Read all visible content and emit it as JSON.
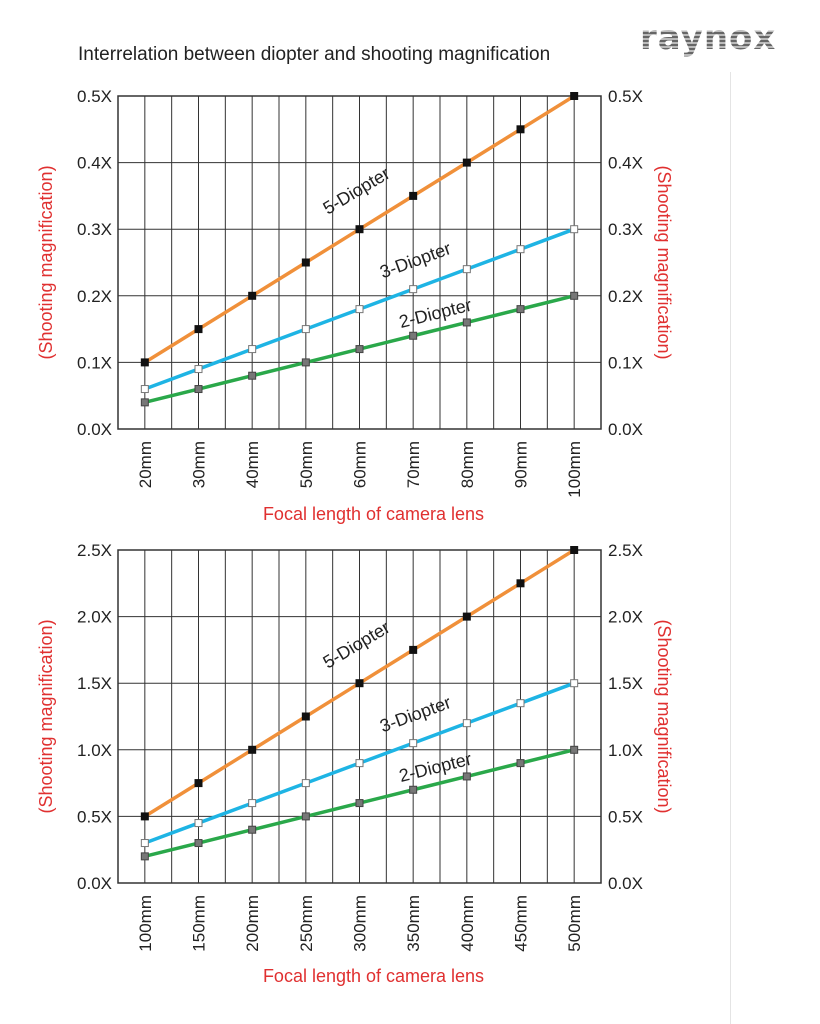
{
  "title": "Interrelation between diopter and shooting magnification",
  "logo": "raynox",
  "colors": {
    "5-Diopter": "#f0903a",
    "3-Diopter": "#1eb4e4",
    "2-Diopter": "#2aa84a",
    "axis_label": "#e03030"
  },
  "chart_data": [
    {
      "type": "line",
      "xlabel": "Focal length of camera lens",
      "ylabel": "(Shooting magnification)",
      "x": [
        20,
        30,
        40,
        50,
        60,
        70,
        80,
        90,
        100
      ],
      "xtick_labels": [
        "20mm",
        "30mm",
        "40mm",
        "50mm",
        "60mm",
        "70mm",
        "80mm",
        "90mm",
        "100mm"
      ],
      "xlim": [
        15,
        105
      ],
      "xgrid_step": 5,
      "ylim": [
        0,
        0.5
      ],
      "yticks": [
        0,
        0.1,
        0.2,
        0.3,
        0.4,
        0.5
      ],
      "ytick_labels": [
        "0.0X",
        "0.1X",
        "0.2X",
        "0.3X",
        "0.4X",
        "0.5X"
      ],
      "series": [
        {
          "name": "5-Diopter",
          "values": [
            0.1,
            0.15,
            0.2,
            0.25,
            0.3,
            0.35,
            0.4,
            0.45,
            0.5
          ]
        },
        {
          "name": "3-Diopter",
          "values": [
            0.06,
            0.09,
            0.12,
            0.15,
            0.18,
            0.21,
            0.24,
            0.27,
            0.3
          ]
        },
        {
          "name": "2-Diopter",
          "values": [
            0.04,
            0.06,
            0.08,
            0.1,
            0.12,
            0.14,
            0.16,
            0.18,
            0.2
          ]
        }
      ]
    },
    {
      "type": "line",
      "xlabel": "Focal length of camera lens",
      "ylabel": "(Shooting magnification)",
      "x": [
        100,
        150,
        200,
        250,
        300,
        350,
        400,
        450,
        500
      ],
      "xtick_labels": [
        "100mm",
        "150mm",
        "200mm",
        "250mm",
        "300mm",
        "350mm",
        "400mm",
        "450mm",
        "500mm"
      ],
      "xlim": [
        75,
        525
      ],
      "xgrid_step": 25,
      "ylim": [
        0,
        2.5
      ],
      "yticks": [
        0,
        0.5,
        1.0,
        1.5,
        2.0,
        2.5
      ],
      "ytick_labels": [
        "0.0X",
        "0.5X",
        "1.0X",
        "1.5X",
        "2.0X",
        "2.5X"
      ],
      "series": [
        {
          "name": "5-Diopter",
          "values": [
            0.5,
            0.75,
            1.0,
            1.25,
            1.5,
            1.75,
            2.0,
            2.25,
            2.5
          ]
        },
        {
          "name": "3-Diopter",
          "values": [
            0.3,
            0.45,
            0.6,
            0.75,
            0.9,
            1.05,
            1.2,
            1.35,
            1.5
          ]
        },
        {
          "name": "2-Diopter",
          "values": [
            0.2,
            0.3,
            0.4,
            0.5,
            0.6,
            0.7,
            0.8,
            0.9,
            1.0
          ]
        }
      ]
    }
  ]
}
